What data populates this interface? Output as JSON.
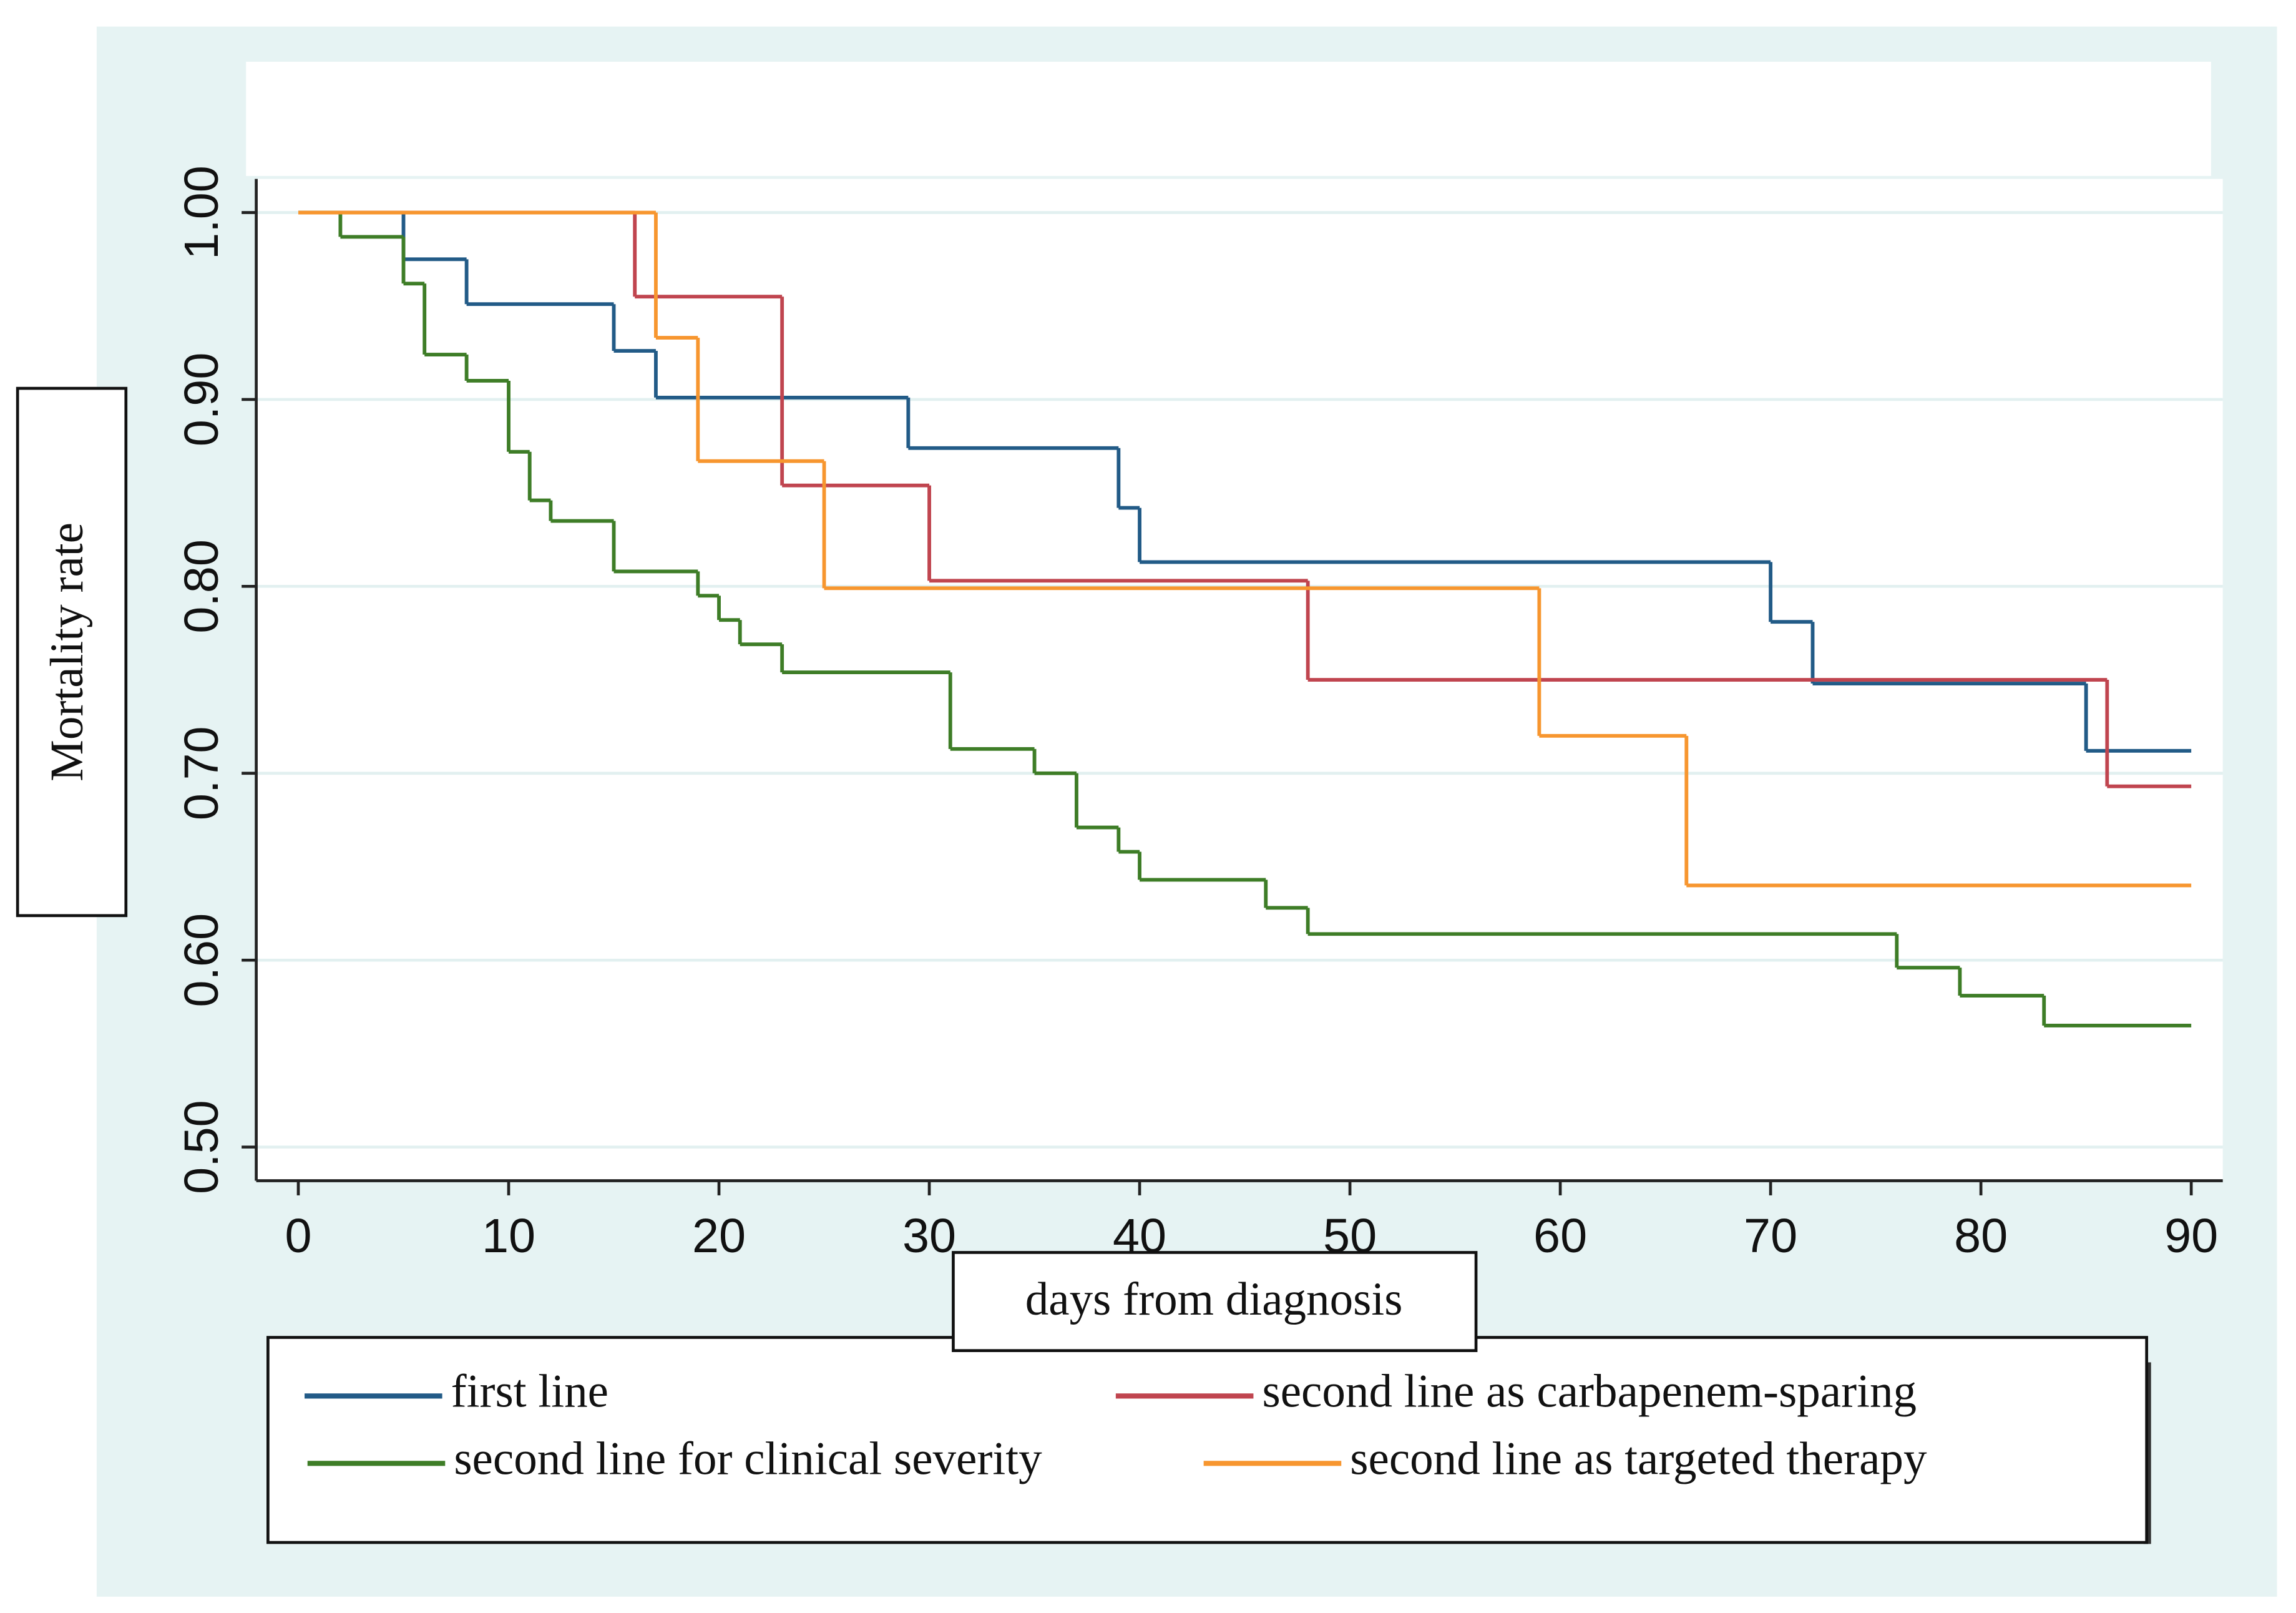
{
  "chart_data": {
    "type": "step",
    "y_label": "Mortality rate",
    "x_label": "days from diagnosis",
    "xlim": [
      -2,
      91.5
    ],
    "ylim": [
      0.482,
      1.018
    ],
    "xticks": [
      0,
      10,
      20,
      30,
      40,
      50,
      60,
      70,
      80,
      90
    ],
    "yticks": [
      {
        "value": 0.5,
        "label": "0.50"
      },
      {
        "value": 0.6,
        "label": "0.60"
      },
      {
        "value": 0.7,
        "label": "0.70"
      },
      {
        "value": 0.8,
        "label": "0.80"
      },
      {
        "value": 0.9,
        "label": "0.90"
      },
      {
        "value": 1,
        "label": "1.00"
      }
    ],
    "grid": true,
    "series": [
      {
        "name": "first line",
        "color": "#225b87",
        "x": [
          0,
          5,
          8,
          15,
          17,
          29,
          39,
          40,
          70,
          72,
          85,
          90
        ],
        "values": [
          1,
          0.975,
          0.951,
          0.926,
          0.901,
          0.874,
          0.842,
          0.813,
          0.781,
          0.748,
          0.712,
          0.712
        ]
      },
      {
        "name": "second line as carbapenem-sparing",
        "color": "#c0454f",
        "x": [
          0,
          16,
          23,
          30,
          48,
          86,
          90
        ],
        "values": [
          1,
          0.955,
          0.854,
          0.803,
          0.75,
          0.693,
          0.693
        ]
      },
      {
        "name": "second line for clinical severity",
        "color": "#3e7d27",
        "x": [
          0,
          2,
          5,
          6,
          8,
          10,
          11,
          12,
          15,
          19,
          20,
          21,
          23,
          31,
          35,
          37,
          39,
          40,
          46,
          48,
          76,
          79,
          83,
          90
        ],
        "values": [
          1,
          0.987,
          0.962,
          0.924,
          0.91,
          0.872,
          0.846,
          0.835,
          0.808,
          0.795,
          0.782,
          0.769,
          0.754,
          0.713,
          0.7,
          0.671,
          0.658,
          0.643,
          0.628,
          0.614,
          0.596,
          0.581,
          0.565,
          0.565
        ]
      },
      {
        "name": "second line as targeted therapy",
        "color": "#f7962f",
        "x": [
          0,
          17,
          19,
          25,
          59,
          66,
          90
        ],
        "values": [
          1,
          0.933,
          0.867,
          0.799,
          0.72,
          0.64,
          0.64
        ]
      }
    ]
  }
}
